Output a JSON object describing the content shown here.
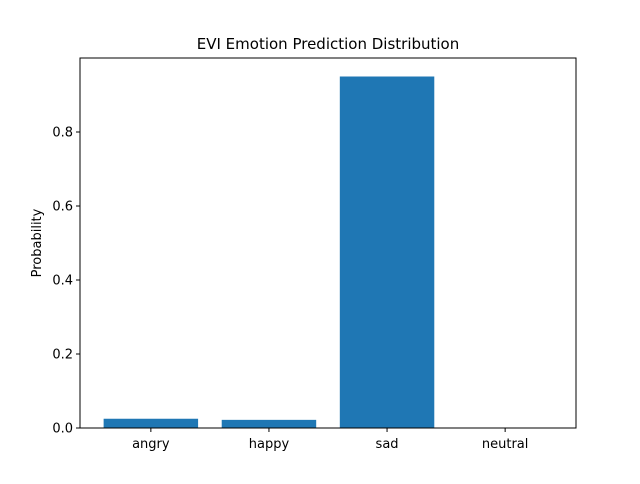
{
  "chart_data": {
    "type": "bar",
    "title": "EVI Emotion Prediction Distribution",
    "xlabel": "",
    "ylabel": "Probability",
    "categories": [
      "angry",
      "happy",
      "sad",
      "neutral"
    ],
    "values": [
      0.025,
      0.022,
      0.95,
      0.001
    ],
    "ylim": [
      0,
      1.0
    ],
    "yticks": [
      0.0,
      0.2,
      0.4,
      0.6,
      0.8
    ],
    "ytick_labels": [
      "0.0",
      "0.2",
      "0.4",
      "0.6",
      "0.8"
    ],
    "bar_color": "#1f77b4",
    "grid": false,
    "legend": "none"
  }
}
